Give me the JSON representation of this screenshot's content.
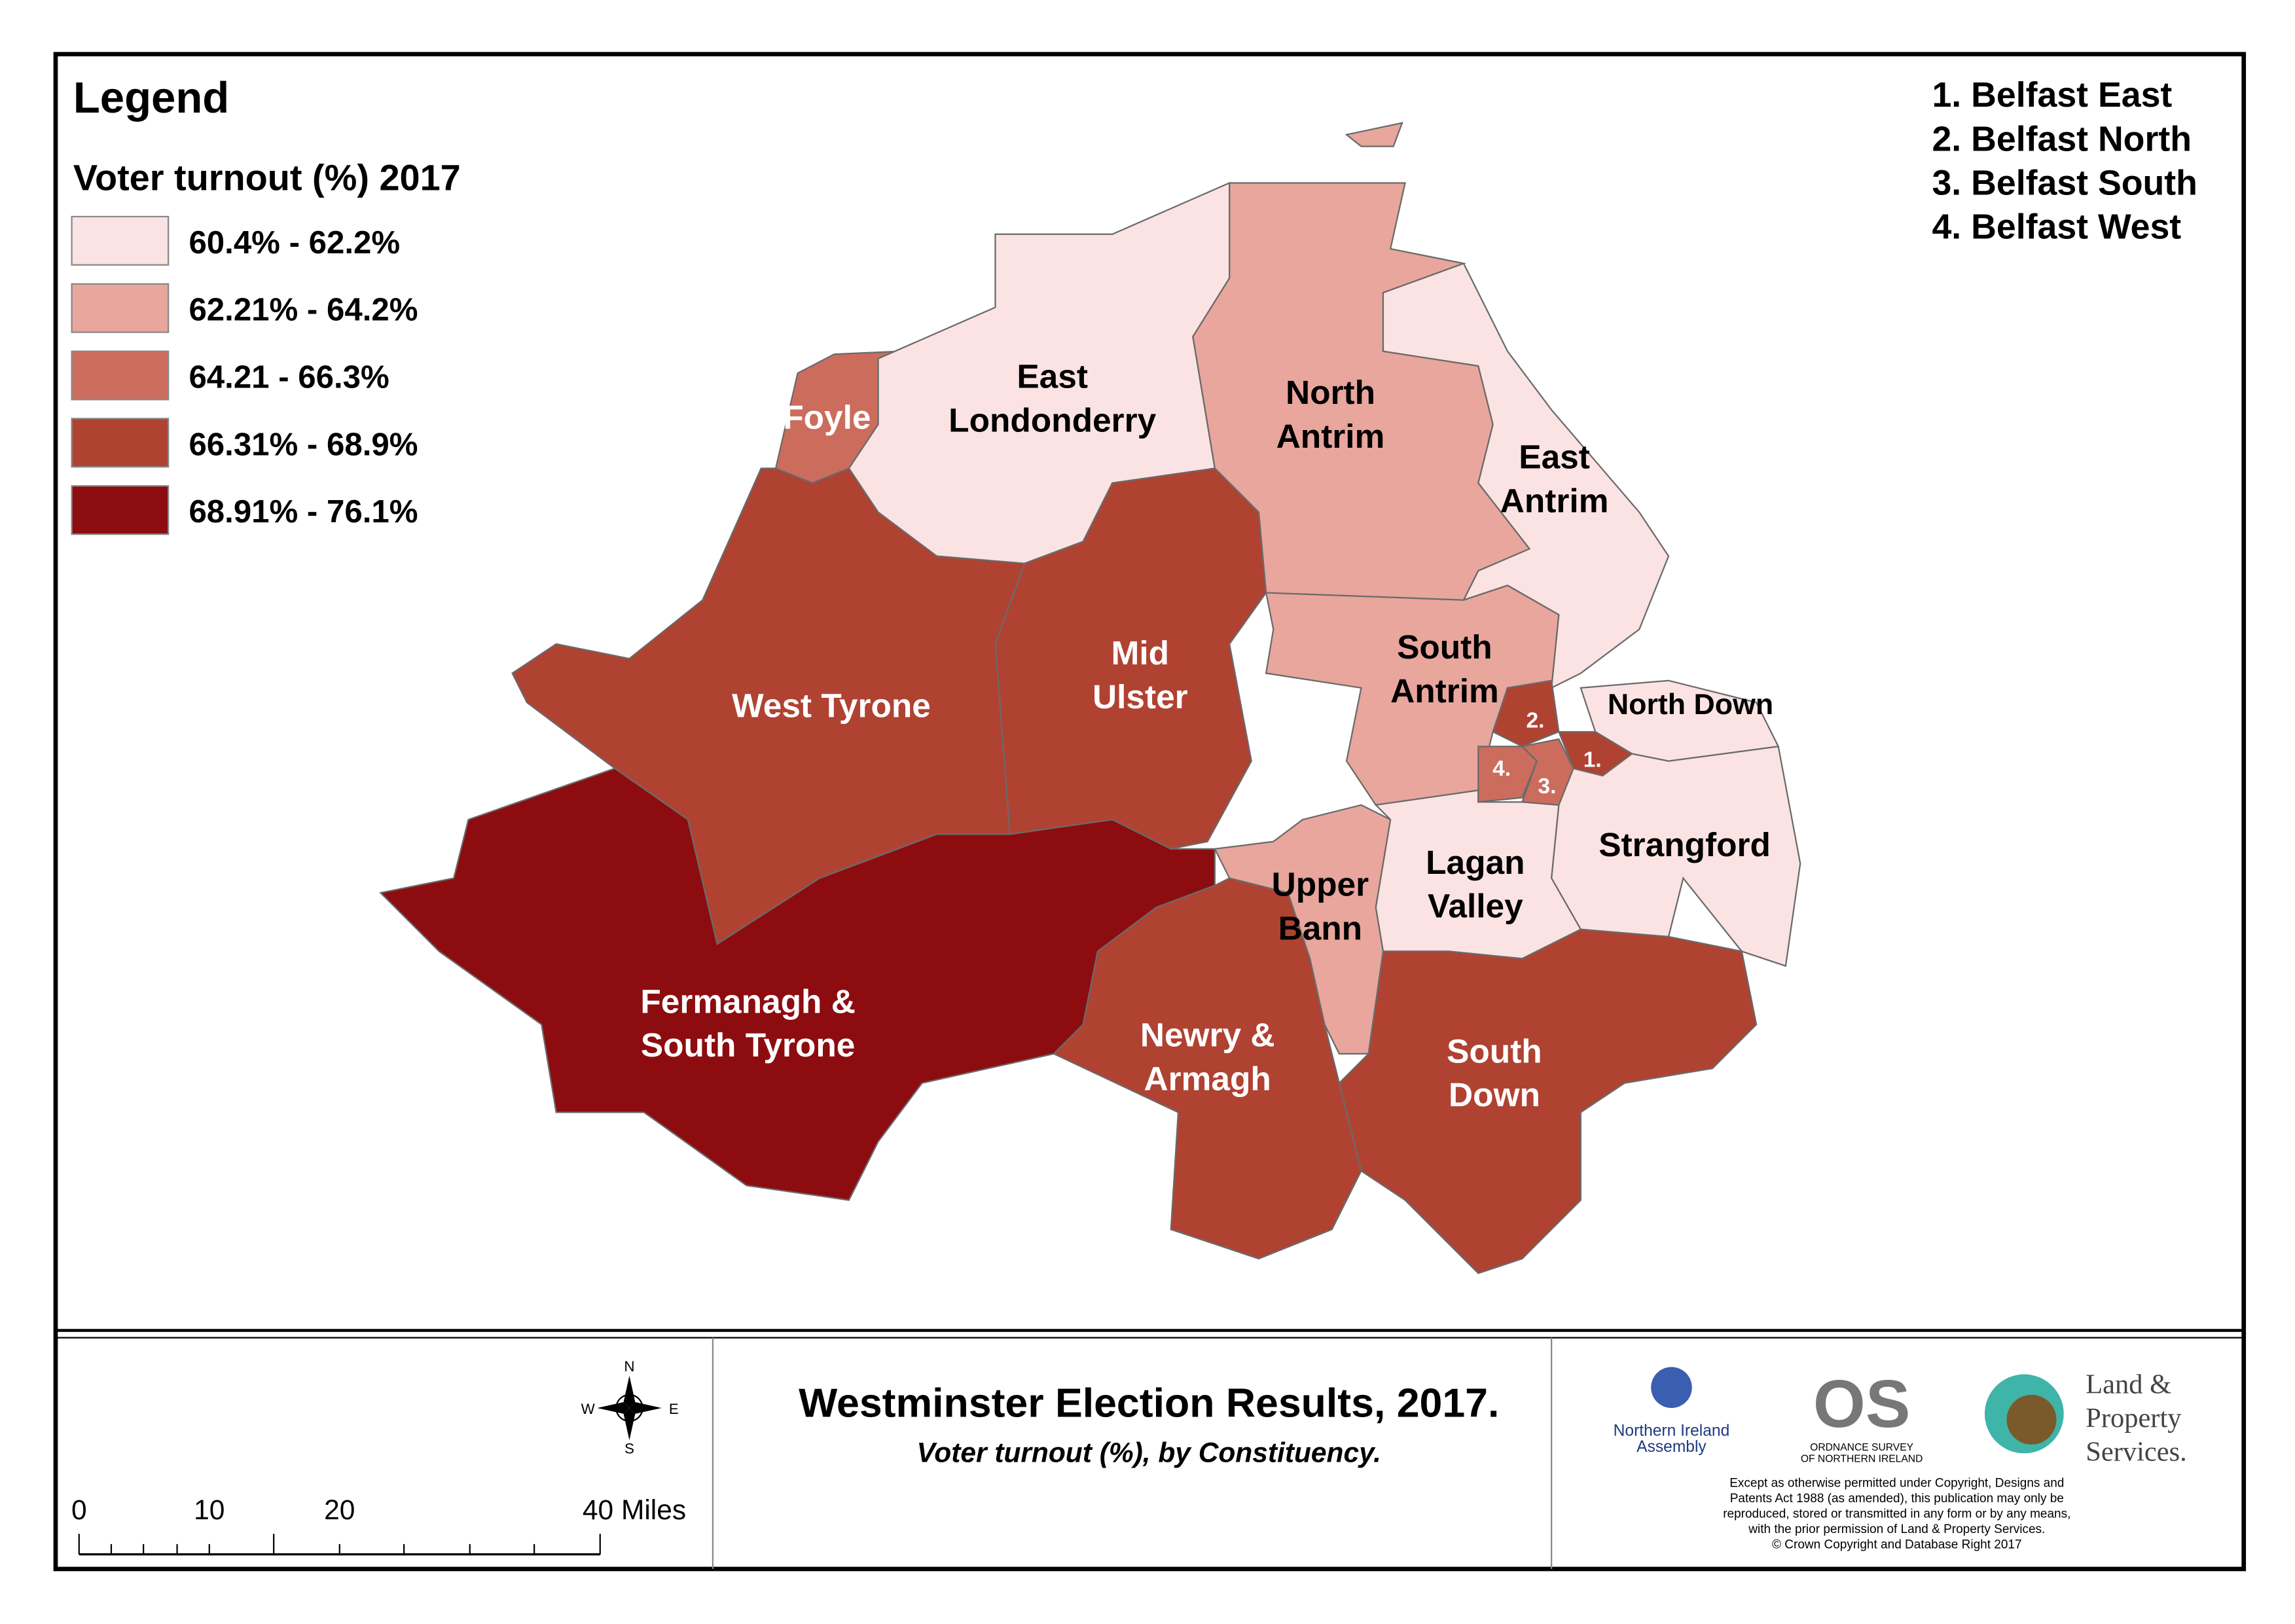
{
  "legend": {
    "title": "Legend",
    "subtitle": "Voter turnout (%) 2017",
    "items": [
      {
        "label": "60.4% - 62.2%",
        "color": "#fce3e3"
      },
      {
        "label": "62.21% - 64.2%",
        "color": "#e8a69d"
      },
      {
        "label": "64.21 - 66.3%",
        "color": "#cc6c5d"
      },
      {
        "label": "66.31% - 68.9%",
        "color": "#b04232"
      },
      {
        "label": "68.91% - 76.1%",
        "color": "#8d0c10"
      }
    ]
  },
  "belfast_key": [
    "1. Belfast East",
    "2. Belfast North",
    "3. Belfast South",
    "4. Belfast West"
  ],
  "constituencies": [
    {
      "lines": [
        "Foyle"
      ]
    },
    {
      "lines": [
        "East",
        "Londonderry"
      ]
    },
    {
      "lines": [
        "North",
        "Antrim"
      ]
    },
    {
      "lines": [
        "East",
        "Antrim"
      ]
    },
    {
      "lines": [
        "Mid",
        "Ulster"
      ]
    },
    {
      "lines": [
        "West Tyrone"
      ]
    },
    {
      "lines": [
        "Fermanagh &",
        "South Tyrone"
      ]
    },
    {
      "lines": [
        "Newry &",
        "Armagh"
      ]
    },
    {
      "lines": [
        "Upper",
        "Bann"
      ]
    },
    {
      "lines": [
        "South",
        "Antrim"
      ]
    },
    {
      "lines": [
        "Lagan",
        "Valley"
      ]
    },
    {
      "lines": [
        "Strangford"
      ]
    },
    {
      "lines": [
        "North Down"
      ]
    },
    {
      "lines": [
        "South",
        "Down"
      ]
    },
    {
      "lines": [
        "1."
      ]
    },
    {
      "lines": [
        "2."
      ]
    },
    {
      "lines": [
        "3."
      ]
    },
    {
      "lines": [
        "4."
      ]
    }
  ],
  "footer": {
    "title": "Westminster Election Results, 2017.",
    "subtitle": "Voter turnout (%), by Constituency.",
    "compass": [
      "N",
      "E",
      "S",
      "W"
    ],
    "scale": [
      "0",
      "10",
      "20",
      "40 Miles"
    ],
    "logos": [
      "Northern Ireland",
      "Assembly",
      "ORDNANCE SURVEY",
      "OF NORTHERN IRELAND",
      "Land &",
      "Property",
      "Services."
    ],
    "copyright": [
      "Except as otherwise permitted under Copyright, Designs and",
      "Patents Act 1988 (as amended), this publication may only be",
      "reproduced, stored or transmitted in any form or by any means,",
      "with the prior permission of Land & Property Services.",
      "© Crown Copyright and Database Right 2017"
    ]
  }
}
